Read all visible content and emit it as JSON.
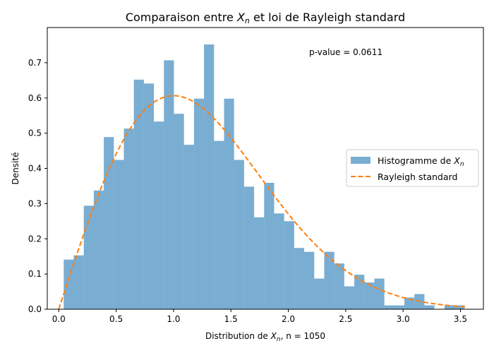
{
  "chart_data": {
    "type": "bar",
    "title": "Comparaison entre X_n et loi de Rayleigh standard",
    "title_parts": {
      "before": "Comparaison entre ",
      "var": "X",
      "sub": "n",
      "after": " et loi de Rayleigh standard"
    },
    "xlabel_parts": {
      "before": "Distribution de ",
      "var": "X",
      "sub": "n",
      "after": ", n = 1050"
    },
    "ylabel": "Densité",
    "annotation": "p-value = 0.0611",
    "xlim": [
      -0.1,
      3.7
    ],
    "ylim": [
      0,
      0.8
    ],
    "xticks": [
      0.0,
      0.5,
      1.0,
      1.5,
      2.0,
      2.5,
      3.0,
      3.5
    ],
    "xtick_labels": [
      "0.0",
      "0.5",
      "1.0",
      "1.5",
      "2.0",
      "2.5",
      "3.0",
      "3.5"
    ],
    "yticks": [
      0.0,
      0.1,
      0.2,
      0.3,
      0.4,
      0.5,
      0.6,
      0.7
    ],
    "ytick_labels": [
      "0.0",
      "0.1",
      "0.2",
      "0.3",
      "0.4",
      "0.5",
      "0.6",
      "0.7"
    ],
    "histogram": {
      "name_parts": {
        "before": "Histogramme de ",
        "var": "X",
        "sub": "n"
      },
      "color": "#1f77b4",
      "alpha": 0.6,
      "bin_start": 0.0433,
      "bin_width": 0.0873,
      "densities": [
        0.141,
        0.153,
        0.294,
        0.337,
        0.489,
        0.424,
        0.513,
        0.652,
        0.641,
        0.533,
        0.707,
        0.555,
        0.467,
        0.598,
        0.752,
        0.478,
        0.598,
        0.424,
        0.348,
        0.261,
        0.359,
        0.272,
        0.25,
        0.174,
        0.163,
        0.087,
        0.163,
        0.13,
        0.065,
        0.098,
        0.076,
        0.087,
        0.011,
        0.011,
        0.033,
        0.043,
        0.011,
        0.0,
        0.011,
        0.011
      ]
    },
    "curve": {
      "name": "Rayleigh standard",
      "color": "#ff7f0e",
      "style": "dashed",
      "function": "x*exp(-x^2/2)",
      "x_range": [
        0.0,
        3.55
      ]
    },
    "legend_placement": "center-right",
    "grid": false
  }
}
